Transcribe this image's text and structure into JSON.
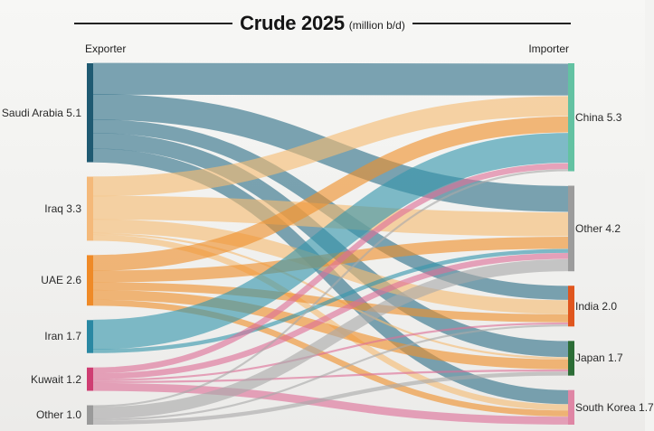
{
  "header": {
    "title": "Crude 2025",
    "unit": "(million b/d)",
    "left_heading": "Exporter",
    "right_heading": "Importer"
  },
  "exporters": [
    {
      "name": "Saudi Arabia",
      "value": 5.1,
      "label": "Saudi Arabia 5.1",
      "color": "#1f5a72",
      "flow_color": "#2f6f87"
    },
    {
      "name": "Iraq",
      "value": 3.3,
      "label": "Iraq 3.3",
      "color": "#f4b97a",
      "flow_color": "#f6bb72"
    },
    {
      "name": "UAE",
      "value": 2.6,
      "label": "UAE 2.6",
      "color": "#ef8a27",
      "flow_color": "#ef8f2c"
    },
    {
      "name": "Iran",
      "value": 1.7,
      "label": "Iran 1.7",
      "color": "#2a88a3",
      "flow_color": "#3596ad"
    },
    {
      "name": "Kuwait",
      "value": 1.2,
      "label": "Kuwait 1.2",
      "color": "#cf3d72",
      "flow_color": "#dd6f97"
    },
    {
      "name": "Other",
      "value": 1.0,
      "label": "Other 1.0",
      "color": "#9a9a9a",
      "flow_color": "#aaaaaa"
    }
  ],
  "importers": [
    {
      "name": "China",
      "value": 5.3,
      "label": "China 5.3",
      "color": "#63c2a2"
    },
    {
      "name": "Other",
      "value": 4.2,
      "label": "Other 4.2",
      "color": "#9c9c9c"
    },
    {
      "name": "India",
      "value": 2.0,
      "label": "India 2.0",
      "color": "#e0561e"
    },
    {
      "name": "Japan",
      "value": 1.7,
      "label": "Japan 1.7",
      "color": "#2c6d36"
    },
    {
      "name": "South Korea",
      "value": 1.7,
      "label": "South Korea 1.7",
      "color": "#df86a5"
    }
  ],
  "chart_data": {
    "type": "sankey",
    "title": "Crude 2025",
    "subtitle": "(million b/d)",
    "unit": "million b/d",
    "flows": [
      {
        "from": "Saudi Arabia",
        "to": "China",
        "value": 1.6
      },
      {
        "from": "Saudi Arabia",
        "to": "Other",
        "value": 1.3
      },
      {
        "from": "Saudi Arabia",
        "to": "India",
        "value": 0.7
      },
      {
        "from": "Saudi Arabia",
        "to": "Japan",
        "value": 0.8
      },
      {
        "from": "Saudi Arabia",
        "to": "South Korea",
        "value": 0.7
      },
      {
        "from": "Iraq",
        "to": "China",
        "value": 1.0
      },
      {
        "from": "Iraq",
        "to": "Other",
        "value": 1.2
      },
      {
        "from": "Iraq",
        "to": "India",
        "value": 0.7
      },
      {
        "from": "Iraq",
        "to": "Japan",
        "value": 0.1
      },
      {
        "from": "Iraq",
        "to": "South Korea",
        "value": 0.3
      },
      {
        "from": "UAE",
        "to": "China",
        "value": 0.8
      },
      {
        "from": "UAE",
        "to": "Other",
        "value": 0.6
      },
      {
        "from": "UAE",
        "to": "India",
        "value": 0.4
      },
      {
        "from": "UAE",
        "to": "Japan",
        "value": 0.5
      },
      {
        "from": "UAE",
        "to": "South Korea",
        "value": 0.3
      },
      {
        "from": "Iran",
        "to": "China",
        "value": 1.5
      },
      {
        "from": "Iran",
        "to": "Other",
        "value": 0.2
      },
      {
        "from": "Kuwait",
        "to": "China",
        "value": 0.3
      },
      {
        "from": "Kuwait",
        "to": "Other",
        "value": 0.3
      },
      {
        "from": "Kuwait",
        "to": "India",
        "value": 0.1
      },
      {
        "from": "Kuwait",
        "to": "Japan",
        "value": 0.1
      },
      {
        "from": "Kuwait",
        "to": "South Korea",
        "value": 0.4
      },
      {
        "from": "Other",
        "to": "China",
        "value": 0.1
      },
      {
        "from": "Other",
        "to": "Other",
        "value": 0.6
      },
      {
        "from": "Other",
        "to": "India",
        "value": 0.1
      },
      {
        "from": "Other",
        "to": "Japan",
        "value": 0.2
      }
    ]
  }
}
